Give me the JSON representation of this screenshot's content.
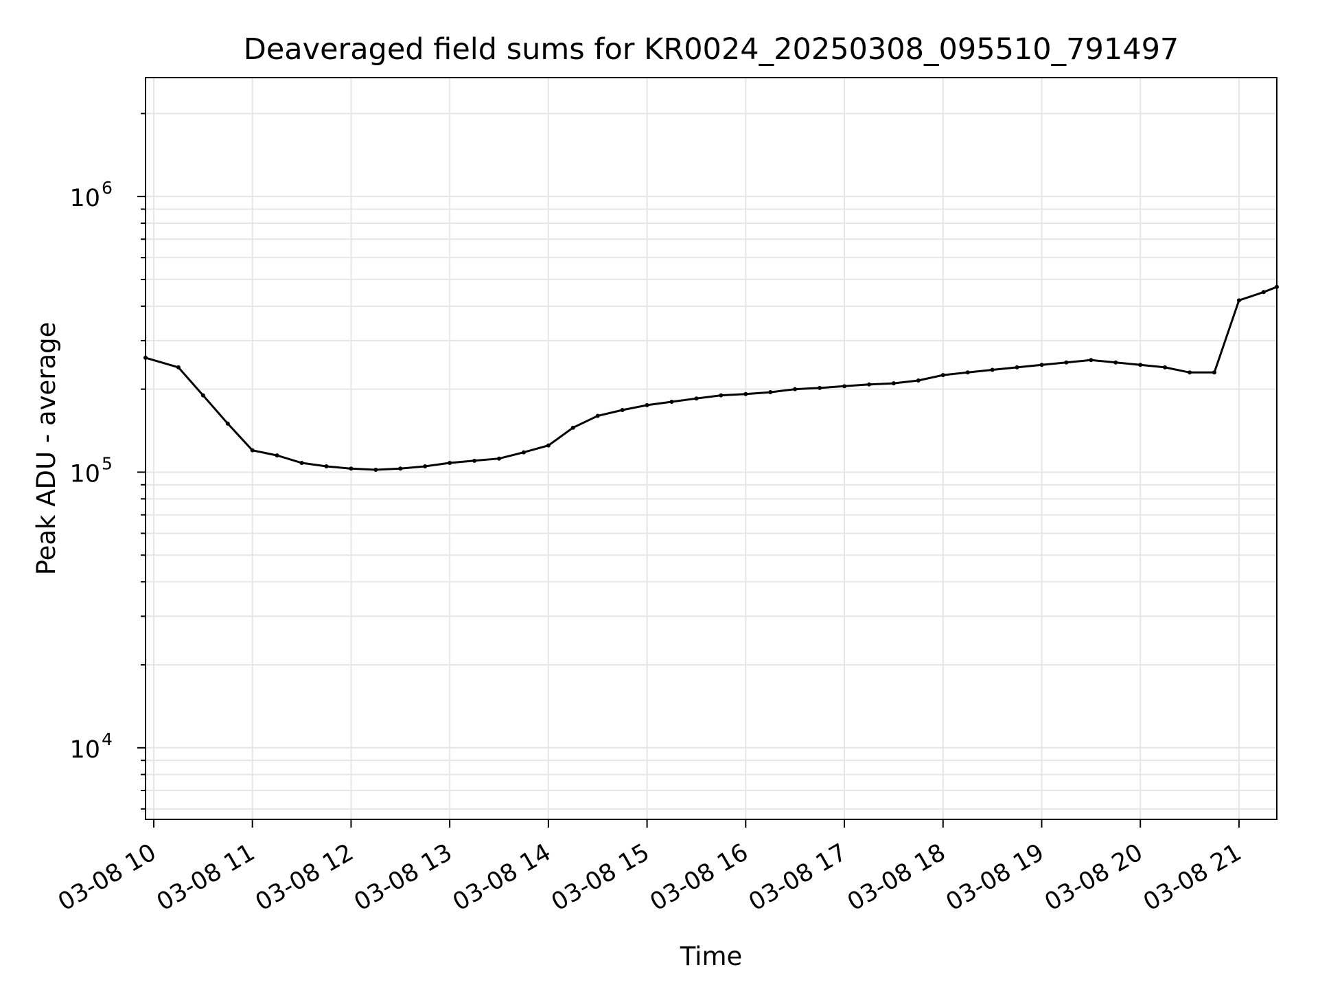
{
  "chart_data": {
    "type": "line",
    "title": "Deaveraged field sums for KR0024_20250308_095510_791497",
    "xlabel": "Time",
    "ylabel": "Peak ADU - average",
    "yscale": "log",
    "ylim": [
      5500,
      2700000
    ],
    "xlim": [
      "2025-03-08 09:55",
      "2025-03-08 21:23"
    ],
    "x_tick_labels": [
      "03-08 10",
      "03-08 11",
      "03-08 12",
      "03-08 13",
      "03-08 14",
      "03-08 15",
      "03-08 16",
      "03-08 17",
      "03-08 18",
      "03-08 19",
      "03-08 20",
      "03-08 21"
    ],
    "y_tick_labels": [
      {
        "base": "10",
        "exp": "4"
      },
      {
        "base": "10",
        "exp": "5"
      },
      {
        "base": "10",
        "exp": "6"
      }
    ],
    "grid": true,
    "line_color": "#000000",
    "series": [
      {
        "name": "",
        "x": [
          "09:55",
          "10:15",
          "10:30",
          "10:45",
          "11:00",
          "11:15",
          "11:30",
          "11:45",
          "12:00",
          "12:15",
          "12:30",
          "12:45",
          "13:00",
          "13:15",
          "13:30",
          "13:45",
          "14:00",
          "14:15",
          "14:30",
          "14:45",
          "15:00",
          "15:15",
          "15:30",
          "15:45",
          "16:00",
          "16:15",
          "16:30",
          "16:45",
          "17:00",
          "17:15",
          "17:30",
          "17:45",
          "18:00",
          "18:15",
          "18:30",
          "18:45",
          "19:00",
          "19:15",
          "19:30",
          "19:45",
          "20:00",
          "20:15",
          "20:30",
          "20:45",
          "21:00",
          "21:15",
          "21:23"
        ],
        "values": [
          260000,
          240000,
          190000,
          150000,
          120000,
          115000,
          108000,
          105000,
          103000,
          102000,
          103000,
          105000,
          108000,
          110000,
          112000,
          118000,
          125000,
          145000,
          160000,
          168000,
          175000,
          180000,
          185000,
          190000,
          192000,
          195000,
          200000,
          202000,
          205000,
          208000,
          210000,
          215000,
          225000,
          230000,
          235000,
          240000,
          245000,
          250000,
          255000,
          250000,
          245000,
          240000,
          230000,
          230000,
          420000,
          450000,
          470000
        ]
      }
    ]
  }
}
